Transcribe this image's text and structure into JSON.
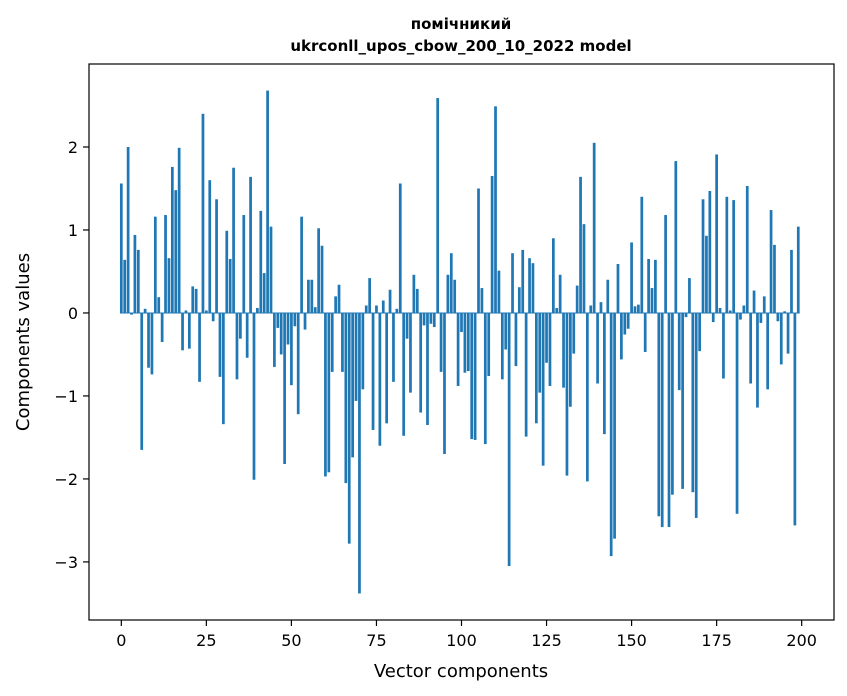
{
  "chart_data": {
    "type": "bar",
    "title_line1": "помічникий",
    "title_line2": "ukrconll_upos_cbow_200_10_2022 model",
    "xlabel": "Vector components",
    "ylabel": "Components values",
    "xlim": [
      -9.5,
      209.5
    ],
    "ylim": [
      -3.7,
      3.0
    ],
    "xticks": [
      0,
      25,
      50,
      75,
      100,
      125,
      150,
      175,
      200
    ],
    "xtick_labels": [
      "0",
      "25",
      "50",
      "75",
      "100",
      "125",
      "150",
      "175",
      "200"
    ],
    "yticks": [
      2,
      1,
      0,
      -1,
      -2,
      -3
    ],
    "ytick_labels": [
      "2",
      "1",
      "0",
      "−1",
      "−2",
      "−3"
    ],
    "bar_color": "#1f77b4",
    "grid": false,
    "legend": "none",
    "x": [
      0,
      1,
      2,
      3,
      4,
      5,
      6,
      7,
      8,
      9,
      10,
      11,
      12,
      13,
      14,
      15,
      16,
      17,
      18,
      19,
      20,
      21,
      22,
      23,
      24,
      25,
      26,
      27,
      28,
      29,
      30,
      31,
      32,
      33,
      34,
      35,
      36,
      37,
      38,
      39,
      40,
      41,
      42,
      43,
      44,
      45,
      46,
      47,
      48,
      49,
      50,
      51,
      52,
      53,
      54,
      55,
      56,
      57,
      58,
      59,
      60,
      61,
      62,
      63,
      64,
      65,
      66,
      67,
      68,
      69,
      70,
      71,
      72,
      73,
      74,
      75,
      76,
      77,
      78,
      79,
      80,
      81,
      82,
      83,
      84,
      85,
      86,
      87,
      88,
      89,
      90,
      91,
      92,
      93,
      94,
      95,
      96,
      97,
      98,
      99,
      100,
      101,
      102,
      103,
      104,
      105,
      106,
      107,
      108,
      109,
      110,
      111,
      112,
      113,
      114,
      115,
      116,
      117,
      118,
      119,
      120,
      121,
      122,
      123,
      124,
      125,
      126,
      127,
      128,
      129,
      130,
      131,
      132,
      133,
      134,
      135,
      136,
      137,
      138,
      139,
      140,
      141,
      142,
      143,
      144,
      145,
      146,
      147,
      148,
      149,
      150,
      151,
      152,
      153,
      154,
      155,
      156,
      157,
      158,
      159,
      160,
      161,
      162,
      163,
      164,
      165,
      166,
      167,
      168,
      169,
      170,
      171,
      172,
      173,
      174,
      175,
      176,
      177,
      178,
      179,
      180,
      181,
      182,
      183,
      184,
      185,
      186,
      187,
      188,
      189,
      190,
      191,
      192,
      193,
      194,
      195,
      196,
      197,
      198,
      199
    ],
    "values": [
      1.56,
      0.64,
      2.0,
      -0.02,
      0.94,
      0.76,
      -1.65,
      0.05,
      -0.66,
      -0.74,
      1.16,
      0.19,
      -0.35,
      1.18,
      0.66,
      1.76,
      1.48,
      1.99,
      -0.45,
      0.03,
      -0.43,
      0.32,
      0.29,
      -0.83,
      2.4,
      0.03,
      1.6,
      -0.1,
      1.37,
      -0.77,
      -1.34,
      0.99,
      0.65,
      1.75,
      -0.8,
      -0.31,
      1.18,
      -0.54,
      1.64,
      -2.01,
      0.06,
      1.23,
      0.48,
      2.68,
      1.04,
      -0.65,
      -0.18,
      -0.5,
      -1.82,
      -0.38,
      -0.87,
      -0.16,
      -1.22,
      1.16,
      -0.2,
      0.4,
      0.4,
      0.07,
      1.02,
      0.81,
      -1.97,
      -1.92,
      -0.71,
      0.2,
      0.34,
      -0.71,
      -2.05,
      -2.78,
      -1.74,
      -1.06,
      -3.38,
      -0.92,
      0.09,
      0.42,
      -1.41,
      0.09,
      -1.6,
      0.15,
      -1.33,
      0.28,
      -0.83,
      0.05,
      1.56,
      -1.48,
      -0.31,
      -0.96,
      0.46,
      0.29,
      -1.2,
      -0.15,
      -1.35,
      -0.13,
      -0.17,
      2.59,
      -0.71,
      -1.7,
      0.46,
      0.72,
      0.4,
      -0.88,
      -0.23,
      -0.72,
      -0.7,
      -1.52,
      -1.53,
      1.5,
      0.3,
      -1.58,
      -0.76,
      1.65,
      2.49,
      0.51,
      -0.8,
      -0.44,
      -3.05,
      0.72,
      -0.64,
      0.31,
      0.76,
      -1.49,
      0.66,
      0.6,
      -1.33,
      -0.96,
      -1.84,
      -0.6,
      -0.88,
      0.9,
      0.06,
      0.46,
      -0.9,
      -1.96,
      -1.13,
      -0.49,
      0.33,
      1.64,
      1.07,
      -2.03,
      0.09,
      2.05,
      -0.85,
      0.13,
      -1.46,
      0.4,
      -2.93,
      -2.72,
      0.59,
      -0.56,
      -0.26,
      -0.19,
      0.85,
      0.08,
      0.1,
      1.4,
      -0.47,
      0.65,
      0.3,
      0.64,
      -2.45,
      -2.58,
      1.18,
      -2.58,
      -2.19,
      1.83,
      -0.93,
      -2.12,
      -0.05,
      0.42,
      -2.16,
      -2.47,
      -0.46,
      1.37,
      0.93,
      1.47,
      -0.11,
      1.91,
      0.06,
      -0.79,
      1.4,
      0.03,
      1.36,
      -2.42,
      -0.08,
      0.09,
      1.53,
      -0.85,
      0.27,
      -1.14,
      -0.12,
      0.2,
      -0.92,
      1.24,
      0.82,
      -0.1,
      -0.62,
      0.02,
      -0.49,
      0.76,
      -2.56,
      1.04
    ]
  }
}
